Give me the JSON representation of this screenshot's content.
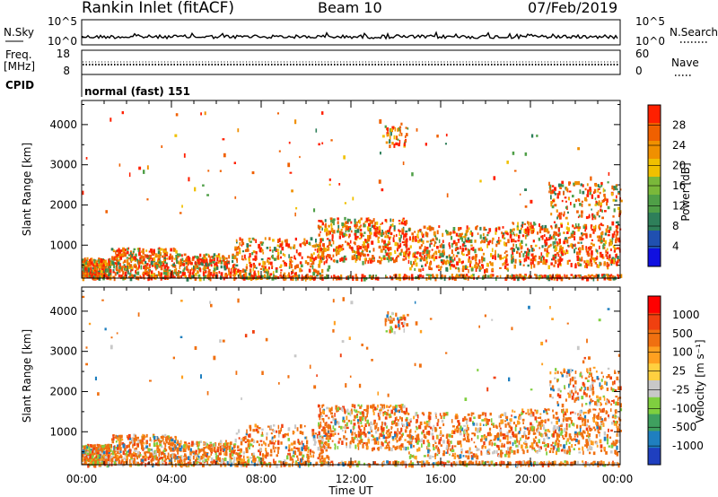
{
  "header": {
    "station": "Rankin Inlet (fitACF)",
    "beam": "Beam 10",
    "date": "07/Feb/2019"
  },
  "strips": {
    "nsky_label": "N.Sky",
    "nsky_ticks": [
      "10^5",
      "10^0"
    ],
    "nsearch_label": "N.Search",
    "nsearch_ticks": [
      "10^5",
      "10^0"
    ],
    "freq_label_1": "Freq.",
    "freq_label_2": "[MHz]",
    "freq_ticks": [
      "18",
      "8"
    ],
    "nave_label": "Nave",
    "nave_ticks": [
      "60",
      "0"
    ],
    "cpid_label": "CPID",
    "cpid_text": "normal (fast) 151"
  },
  "colors": {
    "power_scale": [
      "#1010e0",
      "#2050b0",
      "#2e7f5a",
      "#4f9f47",
      "#7ab83a",
      "#f0c000",
      "#f09000",
      "#f06000",
      "#ff2000"
    ],
    "velocity_scale": [
      "#1f3fbf",
      "#1f7fbf",
      "#3fa05f",
      "#7fcf3f",
      "#c8c8c8",
      "#ffd040",
      "#ffa020",
      "#f07010",
      "#f04010",
      "#ff0000"
    ]
  },
  "chart_data": [
    {
      "type": "heatmap",
      "name": "power",
      "xlabel": "Time UT",
      "ylabel": "Slant Range [km]",
      "x_ticks": [
        "00:00",
        "04:00",
        "08:00",
        "12:00",
        "16:00",
        "20:00",
        "00:00"
      ],
      "xlim_hours": [
        0,
        24
      ],
      "ylim": [
        180,
        4600
      ],
      "y_ticks": [
        1000,
        2000,
        3000,
        4000
      ],
      "colorbar_label": "Power [dB]",
      "colorbar_ticks": [
        "28",
        "24",
        "20",
        "16",
        "12",
        "8",
        "4"
      ],
      "colorbar_range": [
        0,
        30
      ]
    },
    {
      "type": "heatmap",
      "name": "velocity",
      "xlabel": "Time UT",
      "ylabel": "Slant Range [km]",
      "x_ticks": [
        "00:00",
        "04:00",
        "08:00",
        "12:00",
        "16:00",
        "20:00",
        "00:00"
      ],
      "xlim_hours": [
        0,
        24
      ],
      "ylim": [
        180,
        4600
      ],
      "y_ticks": [
        1000,
        2000,
        3000,
        4000
      ],
      "colorbar_label": "Velocity [m s⁻¹]",
      "colorbar_ticks": [
        "1000",
        "500",
        "100",
        "25",
        "-25",
        "-100",
        "-500",
        "-1000"
      ]
    }
  ]
}
